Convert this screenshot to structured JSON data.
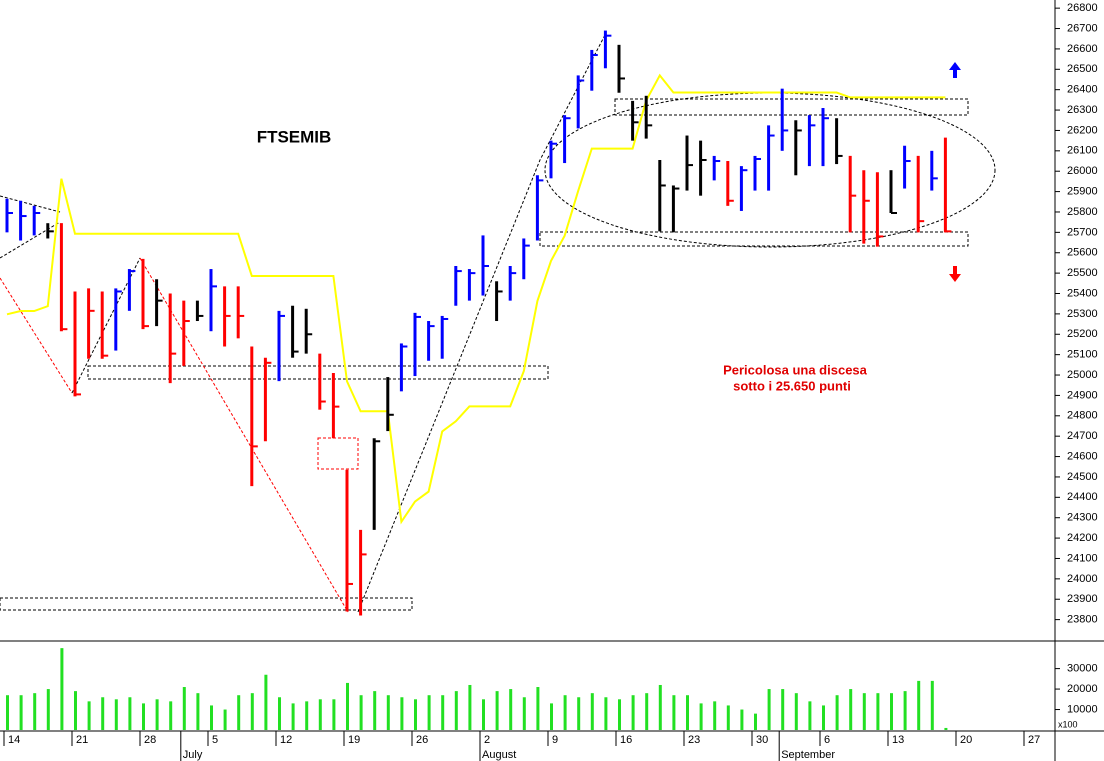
{
  "chart_data": [
    {
      "type": "ohlc",
      "title": "FTSEMIB",
      "annotations": [
        "Pericolosa una discesa",
        "sotto i 25.650 punti"
      ],
      "categories": [
        "14",
        null,
        null,
        null,
        null,
        "21",
        null,
        null,
        null,
        null,
        "28",
        null,
        null,
        null,
        null,
        "5",
        null,
        null,
        null,
        null,
        "12",
        null,
        null,
        null,
        null,
        "19",
        null,
        null,
        null,
        null,
        "26",
        null,
        null,
        null,
        null,
        "2",
        null,
        null,
        null,
        null,
        "9",
        null,
        null,
        null,
        null,
        "16",
        null,
        null,
        null,
        null,
        "23",
        null,
        null,
        null,
        null,
        "30",
        null,
        null,
        null,
        null,
        "6",
        null,
        null,
        null,
        null,
        "13",
        null,
        null,
        null,
        null,
        "20",
        null,
        null,
        null,
        null,
        "27",
        null,
        null
      ],
      "month_labels": [
        null,
        null,
        null,
        null,
        null,
        null,
        null,
        null,
        null,
        null,
        null,
        null,
        null,
        "July",
        null,
        null,
        null,
        null,
        null,
        null,
        null,
        null,
        null,
        null,
        null,
        null,
        null,
        null,
        null,
        null,
        null,
        null,
        null,
        null,
        null,
        "August",
        null,
        null,
        null,
        null,
        null,
        null,
        null,
        null,
        null,
        null,
        null,
        null,
        null,
        null,
        null,
        null,
        null,
        null,
        null,
        null,
        null,
        "September",
        null,
        null,
        null,
        null,
        null,
        null,
        null,
        null,
        null,
        null,
        null,
        null,
        null,
        null,
        null,
        null,
        null,
        null,
        null,
        null
      ],
      "high": [
        25865,
        25855,
        25830,
        25745,
        25745,
        25410,
        25425,
        25410,
        25425,
        25520,
        25570,
        25470,
        25400,
        25365,
        25365,
        25520,
        25435,
        25435,
        25140,
        25085,
        25315,
        25340,
        25325,
        25105,
        25010,
        24535,
        24240,
        24690,
        24990,
        25155,
        25305,
        25265,
        25290,
        25535,
        25520,
        25685,
        25460,
        25535,
        25670,
        25980,
        26150,
        26275,
        26470,
        26595,
        26690,
        26620,
        26345,
        26370,
        26055,
        25930,
        26175,
        26150,
        26075,
        26050,
        26025,
        26075,
        26225,
        26405,
        26250,
        26275,
        26310,
        26260,
        26075,
        26005,
        25995,
        26005,
        26125,
        26075,
        26100,
        26165,
        null,
        null,
        null,
        null,
        null,
        null,
        null,
        null
      ],
      "low": [
        25700,
        25660,
        25685,
        25670,
        25215,
        24895,
        25080,
        25080,
        25120,
        25315,
        25225,
        25240,
        24960,
        25045,
        25265,
        25215,
        25140,
        25180,
        24455,
        24675,
        24970,
        25085,
        25105,
        24830,
        24690,
        23840,
        23820,
        24240,
        24725,
        24920,
        24995,
        25070,
        25080,
        25340,
        25365,
        25390,
        25265,
        25365,
        25470,
        25660,
        25965,
        26040,
        26210,
        26395,
        26505,
        26385,
        26150,
        26160,
        25705,
        25700,
        25905,
        25880,
        25955,
        25830,
        25805,
        25905,
        25905,
        26100,
        25980,
        26025,
        26025,
        26035,
        25700,
        25645,
        25630,
        25795,
        25915,
        25700,
        25905,
        25700,
        null,
        null,
        null,
        null,
        null,
        null,
        null,
        null
      ],
      "close": [
        25795,
        25780,
        25795,
        25705,
        25225,
        24905,
        25315,
        25095,
        25410,
        25510,
        25240,
        25365,
        25105,
        25265,
        25290,
        25435,
        25290,
        25290,
        24650,
        25060,
        25290,
        25115,
        25200,
        24870,
        24845,
        23975,
        24120,
        24675,
        24805,
        25140,
        25285,
        25240,
        25275,
        25510,
        25500,
        25535,
        25410,
        25500,
        25635,
        25955,
        26135,
        26260,
        26445,
        26570,
        26665,
        26455,
        26240,
        26225,
        25930,
        25915,
        26030,
        26055,
        26050,
        25855,
        26005,
        26060,
        26175,
        26200,
        26200,
        26225,
        26260,
        26075,
        25880,
        25855,
        25680,
        25795,
        26050,
        25755,
        25965,
        25705,
        null,
        null,
        null,
        null,
        null,
        null,
        null,
        null
      ],
      "bar_colors": [
        "#0000ff",
        "#0000ff",
        "#0000ff",
        "#000000",
        "#ff0000",
        "#ff0000",
        "#ff0000",
        "#ff0000",
        "#0000ff",
        "#0000ff",
        "#ff0000",
        "#000000",
        "#ff0000",
        "#ff0000",
        "#000000",
        "#0000ff",
        "#ff0000",
        "#ff0000",
        "#ff0000",
        "#ff0000",
        "#0000ff",
        "#000000",
        "#000000",
        "#ff0000",
        "#ff0000",
        "#ff0000",
        "#ff0000",
        "#000000",
        "#000000",
        "#0000ff",
        "#0000ff",
        "#0000ff",
        "#0000ff",
        "#0000ff",
        "#0000ff",
        "#0000ff",
        "#000000",
        "#0000ff",
        "#0000ff",
        "#0000ff",
        "#0000ff",
        "#0000ff",
        "#0000ff",
        "#0000ff",
        "#0000ff",
        "#000000",
        "#000000",
        "#000000",
        "#000000",
        "#000000",
        "#000000",
        "#000000",
        "#0000ff",
        "#ff0000",
        "#0000ff",
        "#0000ff",
        "#0000ff",
        "#0000ff",
        "#000000",
        "#0000ff",
        "#0000ff",
        "#000000",
        "#ff0000",
        "#ff0000",
        "#ff0000",
        "#000000",
        "#0000ff",
        "#ff0000",
        "#0000ff",
        "#ff0000",
        null,
        null,
        null,
        null,
        null,
        null,
        null,
        null
      ],
      "line": {
        "color": "#ffff00",
        "values": [
          25298,
          25314,
          25314,
          25338,
          25963,
          25693,
          25693,
          25693,
          25693,
          25693,
          25693,
          25693,
          25693,
          25693,
          25693,
          25693,
          25693,
          25693,
          25486,
          25486,
          25486,
          25486,
          25486,
          25486,
          25486,
          24969,
          24822,
          24822,
          24822,
          24280,
          24379,
          24428,
          24723,
          24773,
          24846,
          24846,
          24846,
          24846,
          25019,
          25363,
          25560,
          25683,
          25904,
          26111,
          26111,
          26111,
          26111,
          26347,
          26470,
          26386,
          26386,
          26386,
          26386,
          26386,
          26386,
          26386,
          26386,
          26386,
          26386,
          26386,
          26386,
          26386,
          26362,
          26362,
          26362,
          26362,
          26362,
          26362,
          26362,
          26362,
          null,
          null,
          null,
          null,
          null,
          null,
          null,
          null
        ]
      },
      "ylim": [
        23700,
        26840
      ],
      "yticks": [
        23800,
        23900,
        24000,
        24100,
        24200,
        24300,
        24400,
        24500,
        24600,
        24700,
        24800,
        24900,
        25000,
        25100,
        25200,
        25300,
        25400,
        25500,
        25600,
        25700,
        25800,
        25900,
        26000,
        26100,
        26200,
        26300,
        26400,
        26500,
        26600,
        26700,
        26800
      ]
    },
    {
      "type": "bar",
      "unit_label": "x100",
      "color": "#22e022",
      "values": [
        17000,
        17000,
        18000,
        20000,
        40000,
        19000,
        14000,
        16000,
        15000,
        16000,
        13000,
        15000,
        14000,
        21000,
        18000,
        12000,
        10000,
        17000,
        18000,
        27000,
        16000,
        13000,
        14000,
        15000,
        15000,
        23000,
        17000,
        19000,
        17000,
        16000,
        15000,
        17000,
        17000,
        19000,
        22000,
        15000,
        19000,
        20000,
        16000,
        21000,
        13000,
        17000,
        16000,
        18000,
        16000,
        15000,
        17000,
        18000,
        22000,
        17000,
        17000,
        13000,
        14000,
        12000,
        10000,
        8000,
        20000,
        20000,
        18000,
        14000,
        12000,
        17000,
        20000,
        18000,
        18000,
        18000,
        19000,
        24000,
        24000,
        1000,
        null,
        null,
        null,
        null,
        null,
        null,
        null,
        null
      ],
      "ylim": [
        0,
        43000
      ],
      "yticks": [
        10000,
        20000,
        30000
      ]
    }
  ]
}
